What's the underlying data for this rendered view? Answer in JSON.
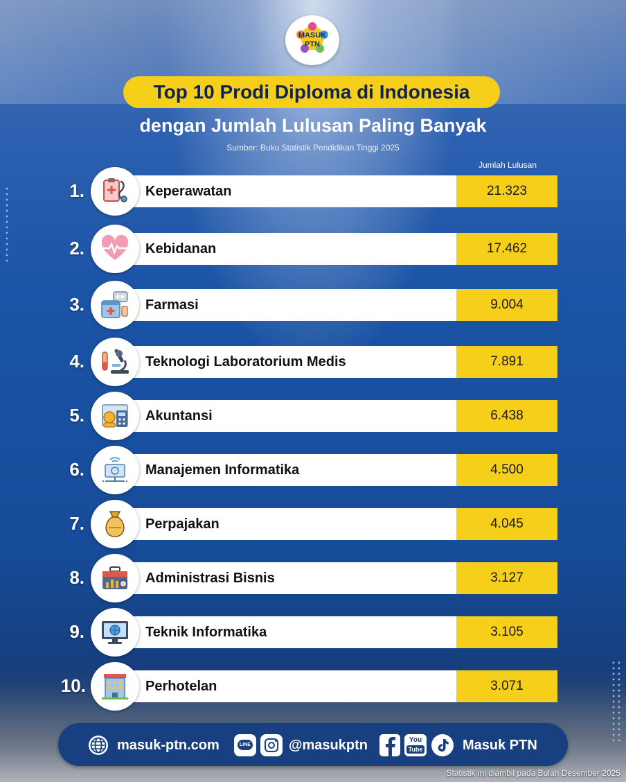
{
  "header": {
    "logo_line1": "MASUK",
    "logo_line2": "PTN",
    "title": "Top 10 Prodi Diploma di Indonesia",
    "subtitle": "dengan Jumlah Lulusan Paling Banyak",
    "source": "Sumber: Buku Statistik Pendidikan Tinggi 2025",
    "column_header": "Jumlah Lulusan"
  },
  "items": [
    {
      "rank": "1.",
      "name": "Keperawatan",
      "value": "21.323",
      "icon": "clipboard-stethoscope-icon"
    },
    {
      "rank": "2.",
      "name": "Kebidanan",
      "value": "17.462",
      "icon": "heart-pulse-icon"
    },
    {
      "rank": "3.",
      "name": "Farmasi",
      "value": "9.004",
      "icon": "medicine-box-icon"
    },
    {
      "rank": "4.",
      "name": "Teknologi Laboratorium Medis",
      "value": "7.891",
      "icon": "microscope-icon"
    },
    {
      "rank": "5.",
      "name": "Akuntansi",
      "value": "6.438",
      "icon": "calculator-coins-icon"
    },
    {
      "rank": "6.",
      "name": "Manajemen Informatika",
      "value": "4.500",
      "icon": "computer-network-icon"
    },
    {
      "rank": "7.",
      "name": "Perpajakan",
      "value": "4.045",
      "icon": "tax-bag-icon"
    },
    {
      "rank": "8.",
      "name": "Administrasi Bisnis",
      "value": "3.127",
      "icon": "briefcase-chart-icon"
    },
    {
      "rank": "9.",
      "name": "Teknik Informatika",
      "value": "3.105",
      "icon": "monitor-globe-icon"
    },
    {
      "rank": "10.",
      "name": "Perhotelan",
      "value": "3.071",
      "icon": "hotel-building-icon"
    }
  ],
  "footer": {
    "website": "masuk-ptn.com",
    "line_icon_label": "LINE",
    "social_handle": "@masukptn",
    "youtube_top": "You",
    "youtube_bottom": "Tube",
    "brand": "Masuk PTN"
  },
  "note": "Statistik ini diambil pada Bulan Desember 2025",
  "colors": {
    "accent": "#f6cf1b",
    "navy": "#183f7f",
    "background": "#1a4fa0"
  }
}
